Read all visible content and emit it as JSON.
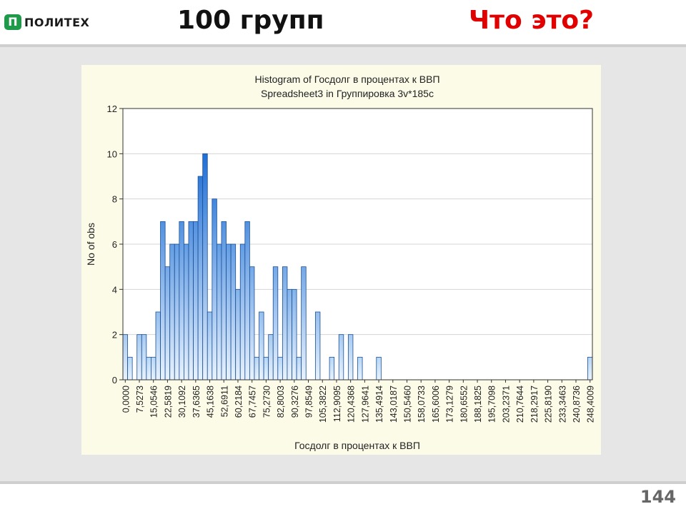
{
  "header": {
    "logo_text": "ПОЛИТЕХ",
    "logo_mark": "П",
    "title": "100 групп",
    "question": "Что это?"
  },
  "footer": {
    "page_number": "144"
  },
  "colors": {
    "accent_red": "#e00000",
    "bar_dark": "#1f6fd6",
    "bar_light": "#dcecfb",
    "bar_stroke": "#1a4f96",
    "logo_green": "#1f9a4a"
  },
  "chart_data": {
    "type": "bar",
    "title": "Histogram of Госдолг в процентах к ВВП",
    "subtitle": "Spreadsheet3 in Группировка 3v*185c",
    "xlabel": "Госдолг в процентах к ВВП",
    "ylabel": "No of obs",
    "ylim": [
      0,
      12
    ],
    "yticks": [
      0,
      2,
      4,
      6,
      8,
      10,
      12
    ],
    "grid": true,
    "x_tick_labels": [
      "0,0000",
      "7,5273",
      "15,0546",
      "22,5819",
      "30,1092",
      "37,6365",
      "45,1638",
      "52,6911",
      "60,2184",
      "67,7457",
      "75,2730",
      "82,8003",
      "90,3276",
      "97,8549",
      "105,3822",
      "112,9095",
      "120,4368",
      "127,9641",
      "135,4914",
      "143,0187",
      "150,5460",
      "158,0733",
      "165,6006",
      "173,1279",
      "180,6552",
      "188,1825",
      "195,7098",
      "203,2371",
      "210,7644",
      "218,2917",
      "225,8190",
      "233,3463",
      "240,8736",
      "248,4009"
    ],
    "bin_width": 2.5091,
    "values": [
      2,
      1,
      0,
      2,
      2,
      1,
      1,
      3,
      7,
      5,
      6,
      6,
      7,
      6,
      7,
      7,
      9,
      10,
      3,
      8,
      6,
      7,
      6,
      6,
      4,
      6,
      7,
      5,
      1,
      3,
      1,
      2,
      5,
      1,
      5,
      4,
      4,
      1,
      5,
      0,
      0,
      3,
      0,
      0,
      1,
      0,
      2,
      0,
      2,
      0,
      1,
      0,
      0,
      0,
      1,
      0,
      0,
      0,
      0,
      0,
      0,
      0,
      0,
      0,
      0,
      0,
      0,
      0,
      0,
      0,
      0,
      0,
      0,
      0,
      0,
      0,
      0,
      0,
      0,
      0,
      0,
      0,
      0,
      0,
      0,
      0,
      0,
      0,
      0,
      0,
      0,
      0,
      0,
      0,
      0,
      0,
      0,
      0,
      0,
      1
    ]
  }
}
